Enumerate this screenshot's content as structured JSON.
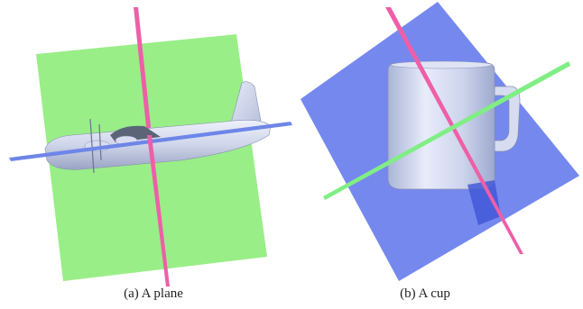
{
  "figure": {
    "subfigures": [
      {
        "label": "(a)",
        "caption": "A plane",
        "object": "airplane",
        "plane_colors": [
          "#99ee88",
          "#ee5fa8",
          "#6e86e8"
        ]
      },
      {
        "label": "(b)",
        "caption": "A cup",
        "object": "mug",
        "plane_colors": [
          "#7588ee",
          "#ee5fa8",
          "#80ee85"
        ]
      }
    ]
  }
}
